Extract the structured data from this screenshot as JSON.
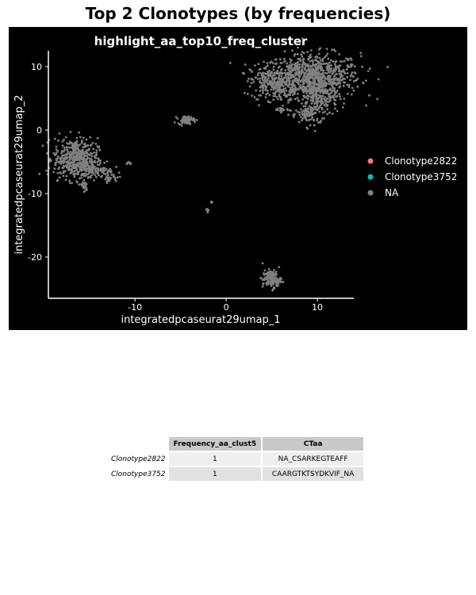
{
  "page": {
    "title": "Top 2 Clonotypes (by frequencies)"
  },
  "chart_data": {
    "type": "scatter",
    "title": "highlight_aa_top10_freq_cluster",
    "xlabel": "integratedpcaseurat29umap_1",
    "ylabel": "integratedpcaseurat29umap_2",
    "xlim": [
      -19.5,
      14
    ],
    "ylim": [
      -26.5,
      12.5
    ],
    "x_ticks": [
      -10,
      0,
      10
    ],
    "y_ticks": [
      10,
      0,
      -10,
      -20
    ],
    "grid": false,
    "background": "#000000",
    "legend_position": "right",
    "series": [
      {
        "name": "Clonotype2822",
        "color": "#F8766D",
        "values": []
      },
      {
        "name": "Clonotype3752",
        "color": "#00BFC4",
        "values": []
      },
      {
        "name": "NA",
        "color": "#808080",
        "clusters": [
          {
            "x": 9.5,
            "y": 8.5,
            "sx": 2.6,
            "sy": 1.8,
            "n": 700
          },
          {
            "x": 5.5,
            "y": 7.5,
            "sx": 1.4,
            "sy": 1.4,
            "n": 280
          },
          {
            "x": 10.2,
            "y": 5.5,
            "sx": 1.0,
            "sy": 1.8,
            "n": 260
          },
          {
            "x": 9.0,
            "y": 2.5,
            "sx": 0.6,
            "sy": 0.7,
            "n": 70
          },
          {
            "x": 6.2,
            "y": 3.2,
            "sx": 0.5,
            "sy": 0.2,
            "n": 20
          },
          {
            "x": -16.5,
            "y": -4.5,
            "sx": 1.2,
            "sy": 1.6,
            "n": 450
          },
          {
            "x": -14.2,
            "y": -6.3,
            "sx": 0.9,
            "sy": 0.5,
            "n": 90
          },
          {
            "x": -12.8,
            "y": -7.5,
            "sx": 0.4,
            "sy": 0.3,
            "n": 30
          },
          {
            "x": -15.6,
            "y": -8.8,
            "sx": 0.2,
            "sy": 0.6,
            "n": 25
          },
          {
            "x": -4.4,
            "y": 1.6,
            "sx": 0.45,
            "sy": 0.3,
            "n": 70
          },
          {
            "x": -10.7,
            "y": -5.2,
            "sx": 0.2,
            "sy": 0.1,
            "n": 8
          },
          {
            "x": 5.0,
            "y": -23.5,
            "sx": 0.5,
            "sy": 0.7,
            "n": 130
          },
          {
            "x": -2.0,
            "y": -12.7,
            "sx": 0.1,
            "sy": 0.15,
            "n": 5
          },
          {
            "x": -1.6,
            "y": -11.4,
            "sx": 0.05,
            "sy": 0.1,
            "n": 3
          }
        ]
      }
    ]
  },
  "table": {
    "columns": [
      "Frequency_aa_clust5",
      "CTaa"
    ],
    "rows": [
      {
        "name": "Clonotype2822",
        "frequency": "1",
        "ctaa": "NA_CSARKEGTEAFF"
      },
      {
        "name": "Clonotype3752",
        "frequency": "1",
        "ctaa": "CAARGTKTSYDKVIF_NA"
      }
    ]
  }
}
